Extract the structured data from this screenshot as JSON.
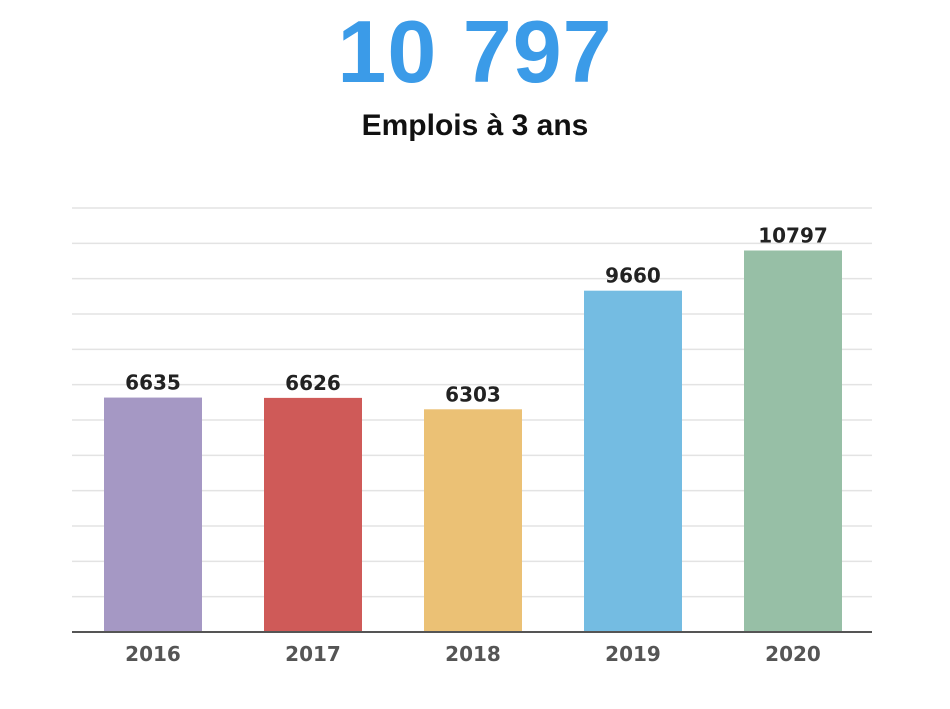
{
  "headline": {
    "value": "10 797",
    "subtitle": "Emplois à 3 ans"
  },
  "chart_data": {
    "type": "bar",
    "categories": [
      "2016",
      "2017",
      "2018",
      "2019",
      "2020"
    ],
    "values": [
      6635,
      6626,
      6303,
      9660,
      10797
    ],
    "value_labels": [
      "6635",
      "6626",
      "6303",
      "9660",
      "10797"
    ],
    "colors": [
      "#a598c4",
      "#cf5a58",
      "#ebc175",
      "#74bce2",
      "#97bfa6"
    ],
    "ylim": [
      0,
      12000
    ],
    "grid": true,
    "legend": "none",
    "axis_color": "#555555",
    "grid_color": "#e3e3e3"
  }
}
